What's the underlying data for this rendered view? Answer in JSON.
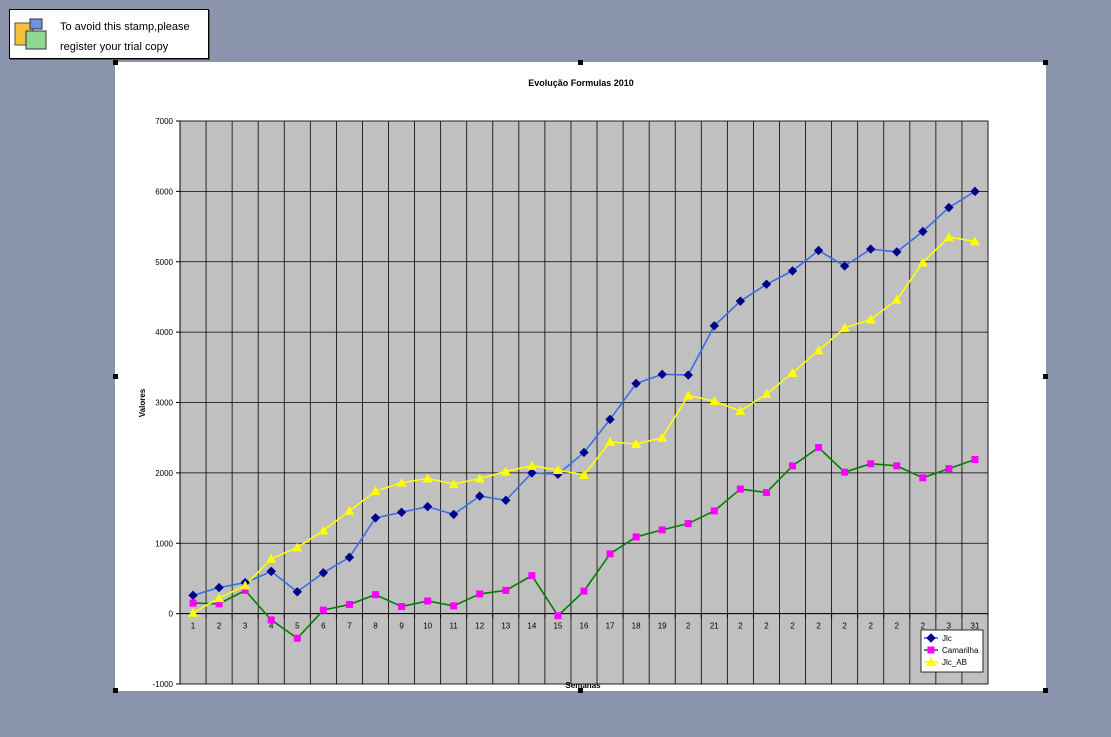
{
  "stamp": {
    "line1": "To avoid this stamp,please",
    "line2": "register your trial copy",
    "icon": "stamp-windows-icon"
  },
  "colors": {
    "background": "#8a95ad",
    "plot_area": "#c0c0c0",
    "gridline": "#000000",
    "series_jlc_line": "#3a6ee8",
    "series_jlc_marker": "#00008b",
    "series_camarilha_line": "#008000",
    "series_camarilha_marker": "#ff00ff",
    "series_jlcab_line": "#ffff00",
    "series_jlcab_marker": "#ffff00"
  },
  "chart_data": {
    "type": "line",
    "title": "Evolução Formulas 2010",
    "xlabel": "Semanas",
    "ylabel": "Valores",
    "ylim": [
      -1000,
      7000
    ],
    "y_ticks": [
      -1000,
      0,
      1000,
      2000,
      3000,
      4000,
      5000,
      6000,
      7000
    ],
    "categories": [
      "1",
      "2",
      "3",
      "4",
      "5",
      "6",
      "7",
      "8",
      "9",
      "10",
      "11",
      "12",
      "13",
      "14",
      "15",
      "16",
      "17",
      "18",
      "19",
      "2",
      "21",
      "2",
      "2",
      "2",
      "2",
      "2",
      "2",
      "2",
      "2",
      "3",
      "31"
    ],
    "grid": true,
    "legend_position": "bottom-right",
    "series": [
      {
        "name": "Jlc",
        "values": [
          260,
          370,
          440,
          600,
          310,
          580,
          800,
          1360,
          1440,
          1520,
          1410,
          1670,
          1610,
          2000,
          1980,
          2290,
          2760,
          3270,
          3400,
          3390,
          4090,
          4440,
          4680,
          4870,
          5160,
          4940,
          5180,
          5140,
          5430,
          5770,
          6000
        ]
      },
      {
        "name": "Camarilha",
        "values": [
          150,
          140,
          330,
          -90,
          -350,
          50,
          130,
          270,
          100,
          180,
          110,
          280,
          330,
          540,
          -30,
          320,
          850,
          1090,
          1190,
          1280,
          1460,
          1770,
          1720,
          2100,
          2360,
          2010,
          2130,
          2100,
          1930,
          2060,
          2190
        ]
      },
      {
        "name": "Jlc_AB",
        "values": [
          10,
          220,
          400,
          780,
          940,
          1180,
          1460,
          1740,
          1860,
          1920,
          1840,
          1920,
          2020,
          2100,
          2040,
          1970,
          2440,
          2410,
          2500,
          3100,
          3020,
          2880,
          3120,
          3420,
          3740,
          4060,
          4180,
          4460,
          4990,
          5350,
          5290
        ]
      }
    ]
  }
}
